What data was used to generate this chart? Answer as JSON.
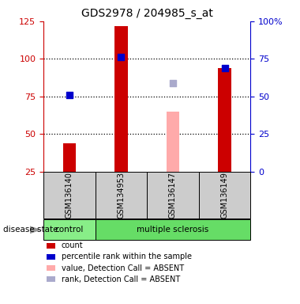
{
  "title": "GDS2978 / 204985_s_at",
  "samples": [
    "GSM136140",
    "GSM134953",
    "GSM136147",
    "GSM136149"
  ],
  "bar_values": [
    44,
    122,
    65,
    94
  ],
  "bar_absent": [
    false,
    false,
    true,
    false
  ],
  "rank_values": [
    76,
    101,
    84,
    94
  ],
  "rank_absent": [
    false,
    false,
    true,
    false
  ],
  "bar_color_present": "#cc0000",
  "bar_color_absent": "#ffaaaa",
  "rank_color_present": "#0000cc",
  "rank_color_absent": "#aaaacc",
  "control_color": "#88ee88",
  "ms_color": "#66dd66",
  "ylim_left": [
    25,
    125
  ],
  "ylim_right": [
    0,
    100
  ],
  "yticks_left": [
    25,
    50,
    75,
    100,
    125
  ],
  "yticks_right": [
    0,
    25,
    50,
    75,
    100
  ],
  "yticklabels_right": [
    "0",
    "25",
    "50",
    "75",
    "100%"
  ],
  "left_axis_color": "#cc0000",
  "right_axis_color": "#0000cc",
  "dotted_lines": [
    50,
    75,
    100
  ],
  "bar_width": 0.25,
  "legend_labels": [
    "count",
    "percentile rank within the sample",
    "value, Detection Call = ABSENT",
    "rank, Detection Call = ABSENT"
  ],
  "legend_colors": [
    "#cc0000",
    "#0000cc",
    "#ffaaaa",
    "#aaaacc"
  ]
}
